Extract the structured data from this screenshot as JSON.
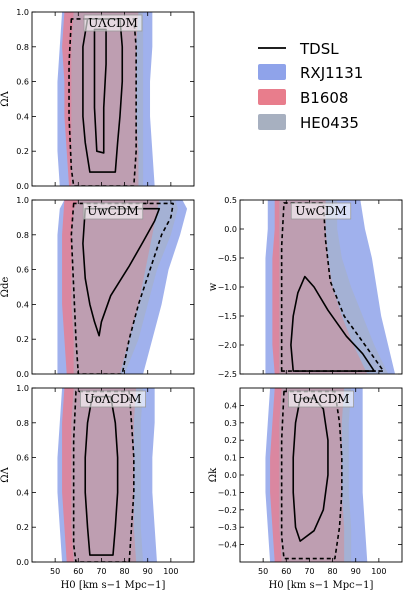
{
  "legend": {
    "items": [
      {
        "label": "TDSL",
        "kind": "line",
        "color": "#000000"
      },
      {
        "label": "RXJ1131",
        "kind": "patch",
        "color": "#8fa3ea"
      },
      {
        "label": "B1608",
        "kind": "patch",
        "color": "#e87d8c"
      },
      {
        "label": "HE0435",
        "kind": "patch",
        "color": "#a7b0c0"
      }
    ]
  },
  "chart_data": [
    {
      "type": "area",
      "id": "ulcdm",
      "title": "UΛCDM",
      "xlabel": "",
      "ylabel": "ΩΛ",
      "xlim": [
        40,
        110
      ],
      "ylim": [
        0,
        1
      ],
      "xticks": [
        50,
        60,
        70,
        80,
        90,
        100
      ],
      "yticks": [
        0.0,
        0.2,
        0.4,
        0.6,
        0.8,
        1.0
      ],
      "show_xtick_labels": false,
      "series": [
        {
          "name": "RXJ1131",
          "color": "#8fa3ea",
          "opacity": 0.85,
          "y": [
            0.0,
            0.2,
            0.4,
            0.6,
            0.8,
            1.0
          ],
          "left": [
            52,
            51,
            51,
            51,
            52,
            53
          ],
          "right": [
            93,
            92,
            91,
            91,
            92,
            92
          ]
        },
        {
          "name": "B1608",
          "color": "#e87d8c",
          "opacity": 0.8,
          "y": [
            0.0,
            0.2,
            0.4,
            0.6,
            0.8,
            1.0
          ],
          "left": [
            56,
            55,
            54,
            54,
            53,
            54
          ],
          "right": [
            86,
            86,
            85,
            85,
            85,
            86
          ]
        },
        {
          "name": "HE0435",
          "color": "#a7b0c0",
          "opacity": 0.55,
          "y": [
            0.0,
            0.2,
            0.4,
            0.6,
            0.8,
            1.0
          ],
          "left": [
            57,
            57,
            57,
            57,
            57,
            58
          ],
          "right": [
            88,
            88,
            88,
            88,
            88,
            88
          ]
        }
      ],
      "contours": [
        {
          "style": "solid",
          "points": [
            [
              64,
              0.96
            ],
            [
              62,
              0.8
            ],
            [
              62,
              0.6
            ],
            [
              62,
              0.4
            ],
            [
              63,
              0.25
            ],
            [
              65,
              0.08
            ],
            [
              76,
              0.08
            ],
            [
              77,
              0.25
            ],
            [
              78,
              0.4
            ],
            [
              79,
              0.6
            ],
            [
              79,
              0.8
            ],
            [
              78,
              0.96
            ]
          ]
        },
        {
          "style": "solid",
          "points": [
            [
              67,
              0.9
            ],
            [
              67,
              0.7
            ],
            [
              67,
              0.45
            ],
            [
              68,
              0.2
            ],
            [
              71,
              0.19
            ],
            [
              71,
              0.45
            ],
            [
              72,
              0.7
            ],
            [
              72,
              0.9
            ]
          ]
        },
        {
          "style": "dashed",
          "points": [
            [
              57,
              0.96
            ],
            [
              56,
              0.7
            ],
            [
              56,
              0.4
            ],
            [
              57,
              0.1
            ],
            [
              58,
              0.0
            ],
            [
              84,
              0.0
            ],
            [
              85,
              0.2
            ],
            [
              85,
              0.4
            ],
            [
              85,
              0.6
            ],
            [
              85,
              0.8
            ],
            [
              84,
              0.96
            ]
          ]
        }
      ]
    },
    {
      "type": "area",
      "id": "uwcdm-left",
      "title": "UwCDM",
      "xlabel": "",
      "ylabel": "Ωde",
      "xlim": [
        40,
        110
      ],
      "ylim": [
        0,
        1
      ],
      "xticks": [
        50,
        60,
        70,
        80,
        90,
        100
      ],
      "yticks": [
        0.0,
        0.2,
        0.4,
        0.6,
        0.8,
        1.0
      ],
      "show_xtick_labels": false,
      "series": [
        {
          "name": "RXJ1131",
          "color": "#8fa3ea",
          "opacity": 0.85,
          "y": [
            0.0,
            0.2,
            0.4,
            0.6,
            0.8,
            0.95,
            1.0
          ],
          "left": [
            51,
            51,
            51,
            51,
            51,
            52,
            54
          ],
          "right": [
            88,
            92,
            96,
            99,
            104,
            107,
            105
          ]
        },
        {
          "name": "B1608",
          "color": "#e87d8c",
          "opacity": 0.8,
          "y": [
            0.0,
            0.2,
            0.4,
            0.6,
            0.8,
            1.0
          ],
          "left": [
            55,
            54,
            53,
            53,
            53,
            54
          ],
          "right": [
            78,
            82,
            86,
            89,
            92,
            95
          ]
        },
        {
          "name": "HE0435",
          "color": "#a7b0c0",
          "opacity": 0.55,
          "y": [
            0.0,
            0.2,
            0.4,
            0.6,
            0.8,
            0.95,
            1.0
          ],
          "left": [
            58,
            58,
            57,
            57,
            57,
            58,
            60
          ],
          "right": [
            80,
            86,
            90,
            94,
            100,
            103,
            102
          ]
        }
      ],
      "contours": [
        {
          "style": "solid",
          "points": [
            [
              63,
              0.95
            ],
            [
              62,
              0.75
            ],
            [
              63,
              0.55
            ],
            [
              65,
              0.4
            ],
            [
              67,
              0.3
            ],
            [
              69,
              0.22
            ],
            [
              70,
              0.3
            ],
            [
              74,
              0.45
            ],
            [
              82,
              0.62
            ],
            [
              88,
              0.76
            ],
            [
              93,
              0.88
            ],
            [
              95,
              0.95
            ]
          ]
        },
        {
          "style": "dashed",
          "points": [
            [
              58,
              0.98
            ],
            [
              57,
              0.8
            ],
            [
              58,
              0.5
            ],
            [
              59,
              0.2
            ],
            [
              60,
              0.0
            ],
            [
              79,
              0.0
            ],
            [
              82,
              0.2
            ],
            [
              86,
              0.4
            ],
            [
              91,
              0.6
            ],
            [
              96,
              0.8
            ],
            [
              100,
              0.9
            ],
            [
              101,
              0.98
            ]
          ]
        }
      ]
    },
    {
      "type": "area",
      "id": "uwcdm-right",
      "title": "UwCDM",
      "xlabel": "",
      "ylabel": "w",
      "xlim": [
        40,
        110
      ],
      "ylim": [
        -2.5,
        0.5
      ],
      "xticks": [
        50,
        60,
        70,
        80,
        90,
        100
      ],
      "yticks": [
        -2.5,
        -2.0,
        -1.5,
        -1.0,
        -0.5,
        0.0,
        0.5
      ],
      "show_xtick_labels": false,
      "series": [
        {
          "name": "RXJ1131",
          "color": "#8fa3ea",
          "opacity": 0.85,
          "y": [
            -2.5,
            -2.0,
            -1.5,
            -1.0,
            -0.5,
            0.0,
            0.5
          ],
          "left": [
            51,
            51,
            51,
            51,
            51,
            52,
            52
          ],
          "right": [
            107,
            104,
            101,
            99,
            97,
            94,
            92
          ]
        },
        {
          "name": "B1608",
          "color": "#e87d8c",
          "opacity": 0.8,
          "y": [
            -2.5,
            -2.0,
            -1.5,
            -1.0,
            -0.5,
            0.0,
            0.5
          ],
          "left": [
            55,
            54,
            54,
            54,
            54,
            55,
            55
          ],
          "right": [
            95,
            89,
            84,
            80,
            78,
            77,
            77
          ]
        },
        {
          "name": "HE0435",
          "color": "#a7b0c0",
          "opacity": 0.55,
          "y": [
            -2.5,
            -2.0,
            -1.5,
            -1.0,
            -0.5,
            0.0,
            0.5
          ],
          "left": [
            57,
            57,
            57,
            57,
            57,
            57,
            57
          ],
          "right": [
            104,
            98,
            93,
            88,
            84,
            82,
            82
          ]
        }
      ],
      "contours": [
        {
          "style": "solid",
          "points": [
            [
              63,
              -2.45
            ],
            [
              62,
              -2.0
            ],
            [
              63,
              -1.5
            ],
            [
              65,
              -1.1
            ],
            [
              68,
              -0.82
            ],
            [
              72,
              -1.0
            ],
            [
              78,
              -1.4
            ],
            [
              86,
              -1.85
            ],
            [
              93,
              -2.15
            ],
            [
              98,
              -2.45
            ]
          ]
        },
        {
          "style": "dashed",
          "points": [
            [
              58,
              -2.45
            ],
            [
              58,
              -1.8
            ],
            [
              58,
              -1.0
            ],
            [
              58,
              -0.3
            ],
            [
              59,
              0.45
            ],
            [
              76,
              0.45
            ],
            [
              77,
              -0.2
            ],
            [
              79,
              -0.9
            ],
            [
              85,
              -1.5
            ],
            [
              94,
              -2.0
            ],
            [
              102,
              -2.45
            ]
          ]
        }
      ]
    },
    {
      "type": "area",
      "id": "uolcdm",
      "title": "UoΛCDM",
      "xlabel": "H0 [km s−1 Mpc−1]",
      "ylabel": "ΩΛ",
      "xlim": [
        40,
        110
      ],
      "ylim": [
        0,
        1
      ],
      "xticks": [
        50,
        60,
        70,
        80,
        90,
        100
      ],
      "yticks": [
        0.0,
        0.2,
        0.4,
        0.6,
        0.8,
        1.0
      ],
      "show_xtick_labels": true,
      "series": [
        {
          "name": "RXJ1131",
          "color": "#8fa3ea",
          "opacity": 0.85,
          "y": [
            0.0,
            0.2,
            0.4,
            0.6,
            0.8,
            1.0
          ],
          "left": [
            53,
            52,
            51,
            51,
            52,
            53
          ],
          "right": [
            94,
            93,
            92,
            92,
            93,
            93
          ]
        },
        {
          "name": "B1608",
          "color": "#e87d8c",
          "opacity": 0.8,
          "y": [
            0.0,
            0.2,
            0.4,
            0.6,
            0.8,
            1.0
          ],
          "left": [
            55,
            54,
            53,
            53,
            53,
            54
          ],
          "right": [
            85,
            84,
            84,
            84,
            84,
            85
          ]
        },
        {
          "name": "HE0435",
          "color": "#a7b0c0",
          "opacity": 0.55,
          "y": [
            0.0,
            0.2,
            0.4,
            0.6,
            0.8,
            1.0
          ],
          "left": [
            58,
            57,
            57,
            57,
            57,
            58
          ],
          "right": [
            88,
            87,
            87,
            87,
            87,
            88
          ]
        }
      ],
      "contours": [
        {
          "style": "solid",
          "points": [
            [
              66,
              0.95
            ],
            [
              64,
              0.8
            ],
            [
              63,
              0.6
            ],
            [
              63,
              0.4
            ],
            [
              64,
              0.2
            ],
            [
              65,
              0.04
            ],
            [
              75,
              0.04
            ],
            [
              76,
              0.2
            ],
            [
              77,
              0.4
            ],
            [
              77,
              0.6
            ],
            [
              76,
              0.8
            ],
            [
              74,
              0.95
            ]
          ]
        },
        {
          "style": "dashed",
          "points": [
            [
              59,
              0.98
            ],
            [
              58,
              0.7
            ],
            [
              58,
              0.4
            ],
            [
              58,
              0.1
            ],
            [
              59,
              0.0
            ],
            [
              82,
              0.0
            ],
            [
              83,
              0.2
            ],
            [
              84,
              0.4
            ],
            [
              84,
              0.6
            ],
            [
              83,
              0.8
            ],
            [
              82,
              0.98
            ]
          ]
        }
      ]
    },
    {
      "type": "area",
      "id": "uolcdm-k",
      "title": "UoΛCDM",
      "xlabel": "H0 [km s−1 Mpc−1]",
      "ylabel": "Ωk",
      "xlim": [
        40,
        110
      ],
      "ylim": [
        -0.5,
        0.5
      ],
      "xticks": [
        50,
        60,
        70,
        80,
        90,
        100
      ],
      "yticks": [
        -0.4,
        -0.3,
        -0.2,
        -0.1,
        0.0,
        0.1,
        0.2,
        0.3,
        0.4
      ],
      "show_xtick_labels": true,
      "series": [
        {
          "name": "RXJ1131",
          "color": "#8fa3ea",
          "opacity": 0.85,
          "y": [
            -0.5,
            -0.3,
            -0.1,
            0.1,
            0.3,
            0.5
          ],
          "left": [
            53,
            52,
            51,
            51,
            52,
            53
          ],
          "right": [
            95,
            94,
            93,
            93,
            93,
            93
          ]
        },
        {
          "name": "B1608",
          "color": "#e87d8c",
          "opacity": 0.8,
          "y": [
            -0.5,
            -0.3,
            -0.1,
            0.1,
            0.3,
            0.5
          ],
          "left": [
            55,
            54,
            53,
            53,
            54,
            55
          ],
          "right": [
            85,
            85,
            84,
            84,
            84,
            85
          ]
        },
        {
          "name": "HE0435",
          "color": "#a7b0c0",
          "opacity": 0.55,
          "y": [
            -0.5,
            -0.3,
            -0.1,
            0.1,
            0.3,
            0.5
          ],
          "left": [
            58,
            57,
            57,
            57,
            57,
            58
          ],
          "right": [
            88,
            88,
            87,
            87,
            87,
            88
          ]
        }
      ],
      "contours": [
        {
          "style": "solid",
          "points": [
            [
              66,
              0.44
            ],
            [
              64,
              0.3
            ],
            [
              63,
              0.1
            ],
            [
              63,
              -0.1
            ],
            [
              64,
              -0.3
            ],
            [
              66,
              -0.38
            ],
            [
              72,
              -0.32
            ],
            [
              76,
              -0.2
            ],
            [
              78,
              0.0
            ],
            [
              78,
              0.2
            ],
            [
              76,
              0.38
            ],
            [
              72,
              0.44
            ]
          ]
        },
        {
          "style": "dashed",
          "points": [
            [
              59,
              0.48
            ],
            [
              58,
              0.2
            ],
            [
              58,
              -0.1
            ],
            [
              58,
              -0.35
            ],
            [
              59,
              -0.48
            ],
            [
              81,
              -0.48
            ],
            [
              83,
              -0.3
            ],
            [
              84,
              -0.1
            ],
            [
              84,
              0.1
            ],
            [
              83,
              0.3
            ],
            [
              81,
              0.48
            ]
          ]
        }
      ]
    }
  ]
}
